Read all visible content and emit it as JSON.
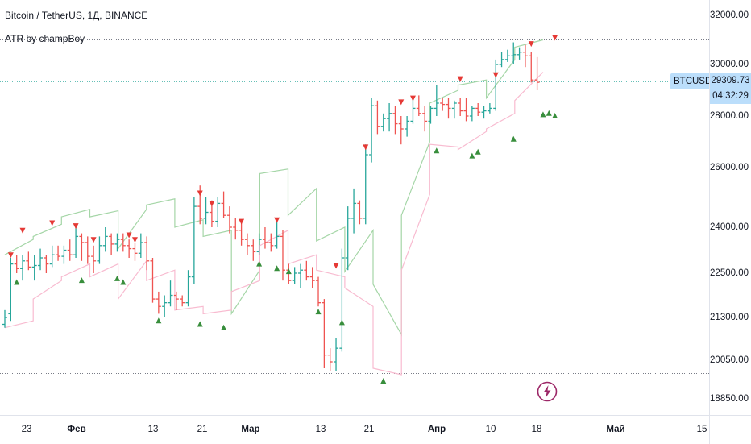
{
  "legend": {
    "title": "Bitcoin / TetherUS, 1Д, BINANCE",
    "indicator": "ATR by champBoy"
  },
  "price_axis": {
    "ticks": [
      "32000.00",
      "30000.00",
      "28000.00",
      "26000.00",
      "24000.00",
      "22500.00",
      "21300.00",
      "20050.00",
      "18850.00"
    ],
    "values": [
      32000,
      30000,
      28000,
      26000,
      24000,
      22500,
      21300,
      20050,
      18850
    ]
  },
  "time_axis": {
    "ticks": [
      {
        "label": "23",
        "bold": false
      },
      {
        "label": "Фев",
        "bold": true
      },
      {
        "label": "13",
        "bold": false
      },
      {
        "label": "21",
        "bold": false
      },
      {
        "label": "Мар",
        "bold": true
      },
      {
        "label": "13",
        "bold": false
      },
      {
        "label": "21",
        "bold": false
      },
      {
        "label": "Апр",
        "bold": true
      },
      {
        "label": "10",
        "bold": false
      },
      {
        "label": "18",
        "bold": false
      },
      {
        "label": "Май",
        "bold": true
      },
      {
        "label": "15",
        "bold": false
      }
    ]
  },
  "symbol": "BTCUSDT",
  "last_price": "29309.73",
  "countdown": "04:32:29",
  "colors": {
    "up": "#26a69a",
    "down": "#ef5350",
    "upper_band": "#a5d6a7",
    "lower_band": "#f8bbd0",
    "buy_marker": "#388e3c",
    "sell_marker": "#e53935",
    "label_bg": "#bbdefb"
  },
  "icons": {
    "flash": "lightning-bolt-icon"
  },
  "chart_data": {
    "type": "ohlc",
    "series_name": "BTCUSDT",
    "ylim": [
      18500,
      32700
    ],
    "points": [
      [
        21100,
        21500,
        21000,
        21300
      ],
      [
        21400,
        23000,
        21200,
        22800
      ],
      [
        22800,
        23100,
        22500,
        22650
      ],
      [
        22650,
        23100,
        22300,
        22900
      ],
      [
        22900,
        23200,
        22600,
        22700
      ],
      [
        22700,
        23100,
        22300,
        22750
      ],
      [
        22750,
        23300,
        22600,
        23000
      ],
      [
        23000,
        23100,
        22500,
        22800
      ],
      [
        22800,
        23400,
        22700,
        23100
      ],
      [
        23100,
        23400,
        22900,
        23050
      ],
      [
        23050,
        23400,
        22800,
        23250
      ],
      [
        23250,
        23600,
        22900,
        23100
      ],
      [
        23100,
        24100,
        23000,
        23700
      ],
      [
        23700,
        23800,
        22900,
        23500
      ],
      [
        23500,
        23700,
        22800,
        23050
      ],
      [
        23050,
        23400,
        22500,
        22900
      ],
      [
        22900,
        23700,
        22800,
        23400
      ],
      [
        23400,
        24000,
        23200,
        23700
      ],
      [
        23700,
        23800,
        23100,
        23450
      ],
      [
        23450,
        23800,
        23200,
        23600
      ],
      [
        23600,
        23800,
        23200,
        23400
      ],
      [
        23400,
        23600,
        23000,
        23300
      ],
      [
        23300,
        23500,
        22900,
        23150
      ],
      [
        23150,
        23800,
        23000,
        23500
      ],
      [
        23500,
        23700,
        22600,
        22900
      ],
      [
        22900,
        23000,
        21700,
        21800
      ],
      [
        21800,
        22000,
        21400,
        21600
      ],
      [
        21600,
        21900,
        21300,
        21700
      ],
      [
        21700,
        22300,
        21600,
        21900
      ],
      [
        21900,
        22000,
        21500,
        21800
      ],
      [
        21800,
        21900,
        21600,
        21700
      ],
      [
        21700,
        22600,
        21600,
        22400
      ],
      [
        22400,
        25000,
        22200,
        24700
      ],
      [
        24700,
        25400,
        24100,
        24300
      ],
      [
        24300,
        25000,
        24100,
        24500
      ],
      [
        24500,
        24900,
        24000,
        24200
      ],
      [
        24200,
        25000,
        24000,
        24800
      ],
      [
        24800,
        25200,
        24300,
        24400
      ],
      [
        24400,
        24700,
        23800,
        24000
      ],
      [
        24000,
        24300,
        23600,
        23900
      ],
      [
        23900,
        24200,
        23400,
        23600
      ],
      [
        23600,
        23800,
        23100,
        23400
      ],
      [
        23400,
        23600,
        22900,
        23200
      ],
      [
        23200,
        23800,
        23100,
        23600
      ],
      [
        23600,
        24000,
        23300,
        23500
      ],
      [
        23500,
        23800,
        23200,
        23400
      ],
      [
        23400,
        24300,
        23300,
        23700
      ],
      [
        23700,
        23900,
        22300,
        22600
      ],
      [
        22600,
        22800,
        22200,
        22300
      ],
      [
        22300,
        22700,
        22200,
        22500
      ],
      [
        22500,
        22800,
        22100,
        22600
      ],
      [
        22600,
        22900,
        22300,
        22400
      ],
      [
        22400,
        22700,
        22100,
        22300
      ],
      [
        22300,
        22400,
        21600,
        21700
      ],
      [
        21700,
        21800,
        19800,
        20200
      ],
      [
        20200,
        20400,
        19700,
        20000
      ],
      [
        20000,
        20700,
        19700,
        20400
      ],
      [
        20400,
        23300,
        20300,
        23000
      ],
      [
        23000,
        24700,
        22600,
        24300
      ],
      [
        24300,
        25300,
        23800,
        24800
      ],
      [
        24800,
        24900,
        24100,
        24300
      ],
      [
        24300,
        26900,
        24100,
        26500
      ],
      [
        26500,
        28700,
        26200,
        28400
      ],
      [
        28400,
        28600,
        27300,
        27600
      ],
      [
        27600,
        28100,
        27400,
        27900
      ],
      [
        27900,
        28500,
        27400,
        28100
      ],
      [
        28100,
        28400,
        27300,
        27700
      ],
      [
        27700,
        28000,
        26900,
        27500
      ],
      [
        27500,
        28000,
        27200,
        27800
      ],
      [
        27800,
        28700,
        27700,
        28300
      ],
      [
        28300,
        28800,
        28000,
        28100
      ],
      [
        28100,
        28400,
        27400,
        27800
      ],
      [
        27800,
        28400,
        27700,
        28300
      ],
      [
        28300,
        29200,
        28000,
        28500
      ],
      [
        28500,
        28700,
        28200,
        28450
      ],
      [
        28450,
        28700,
        27900,
        28300
      ],
      [
        28300,
        28600,
        27900,
        28500
      ],
      [
        28500,
        28700,
        28000,
        28200
      ],
      [
        28200,
        28700,
        27800,
        28000
      ],
      [
        28000,
        28400,
        27800,
        28300
      ],
      [
        28300,
        28500,
        28000,
        28150
      ],
      [
        28150,
        28400,
        27900,
        28200
      ],
      [
        28200,
        28500,
        28100,
        28300
      ],
      [
        28300,
        30200,
        28200,
        30000
      ],
      [
        30000,
        30500,
        29900,
        30200
      ],
      [
        30200,
        30600,
        30100,
        30350
      ],
      [
        30350,
        30900,
        30000,
        30400
      ],
      [
        30400,
        30700,
        30200,
        30500
      ],
      [
        30500,
        30800,
        29900,
        30350
      ],
      [
        30350,
        30500,
        29300,
        29400
      ],
      [
        29400,
        30300,
        29000,
        29310
      ]
    ],
    "upper_band": [
      [
        23100,
        23600
      ],
      [
        23700,
        24100
      ],
      [
        24350,
        24600
      ],
      [
        24350,
        24550
      ],
      [
        23300,
        24600
      ],
      [
        24750,
        24950
      ],
      [
        24000,
        24250
      ],
      [
        23700,
        23900
      ],
      [
        21400,
        22600
      ],
      [
        25800,
        25950
      ],
      [
        24400,
        25300
      ],
      [
        23550,
        24000
      ],
      [
        22550,
        23900
      ],
      [
        22200,
        20800
      ],
      [
        24400,
        27000
      ],
      [
        28500,
        29000
      ],
      [
        29200,
        29400
      ],
      [
        28700,
        30200
      ],
      [
        30700,
        31000
      ]
    ],
    "lower_band": [
      [
        21000,
        21200
      ],
      [
        21800,
        22300
      ],
      [
        22400,
        22800
      ],
      [
        22400,
        22800
      ],
      [
        21800,
        22900
      ],
      [
        22300,
        22600
      ],
      [
        21500,
        21600
      ],
      [
        21400,
        21500
      ],
      [
        22000,
        22300
      ],
      [
        23400,
        23900
      ],
      [
        22800,
        23100
      ],
      [
        22600,
        22400
      ],
      [
        22100,
        21600
      ],
      [
        19800,
        19600
      ],
      [
        22600,
        25100
      ],
      [
        26900,
        26800
      ],
      [
        26700,
        27400
      ],
      [
        27500,
        28100
      ],
      [
        28600,
        29700
      ]
    ],
    "buy_signals": [
      [
        2,
        22250
      ],
      [
        13,
        22300
      ],
      [
        19,
        22350
      ],
      [
        20,
        22250
      ],
      [
        26,
        21200
      ],
      [
        33,
        21100
      ],
      [
        37,
        21000
      ],
      [
        43,
        22800
      ],
      [
        46,
        22650
      ],
      [
        48,
        22550
      ],
      [
        53,
        21450
      ],
      [
        57,
        21150
      ],
      [
        64,
        19400
      ],
      [
        73,
        26650
      ],
      [
        79,
        26450
      ],
      [
        80,
        26600
      ],
      [
        86,
        27100
      ],
      [
        91,
        28050
      ],
      [
        92,
        28100
      ],
      [
        93,
        28000
      ]
    ],
    "sell_signals": [
      [
        1,
        23100
      ],
      [
        3,
        23900
      ],
      [
        8,
        24150
      ],
      [
        12,
        24050
      ],
      [
        15,
        23600
      ],
      [
        21,
        23750
      ],
      [
        22,
        23600
      ],
      [
        33,
        25150
      ],
      [
        35,
        24800
      ],
      [
        40,
        24200
      ],
      [
        46,
        24250
      ],
      [
        56,
        22750
      ],
      [
        61,
        26800
      ],
      [
        67,
        28550
      ],
      [
        69,
        28700
      ],
      [
        77,
        29450
      ],
      [
        83,
        29600
      ],
      [
        89,
        30850
      ],
      [
        93,
        31100
      ]
    ]
  }
}
